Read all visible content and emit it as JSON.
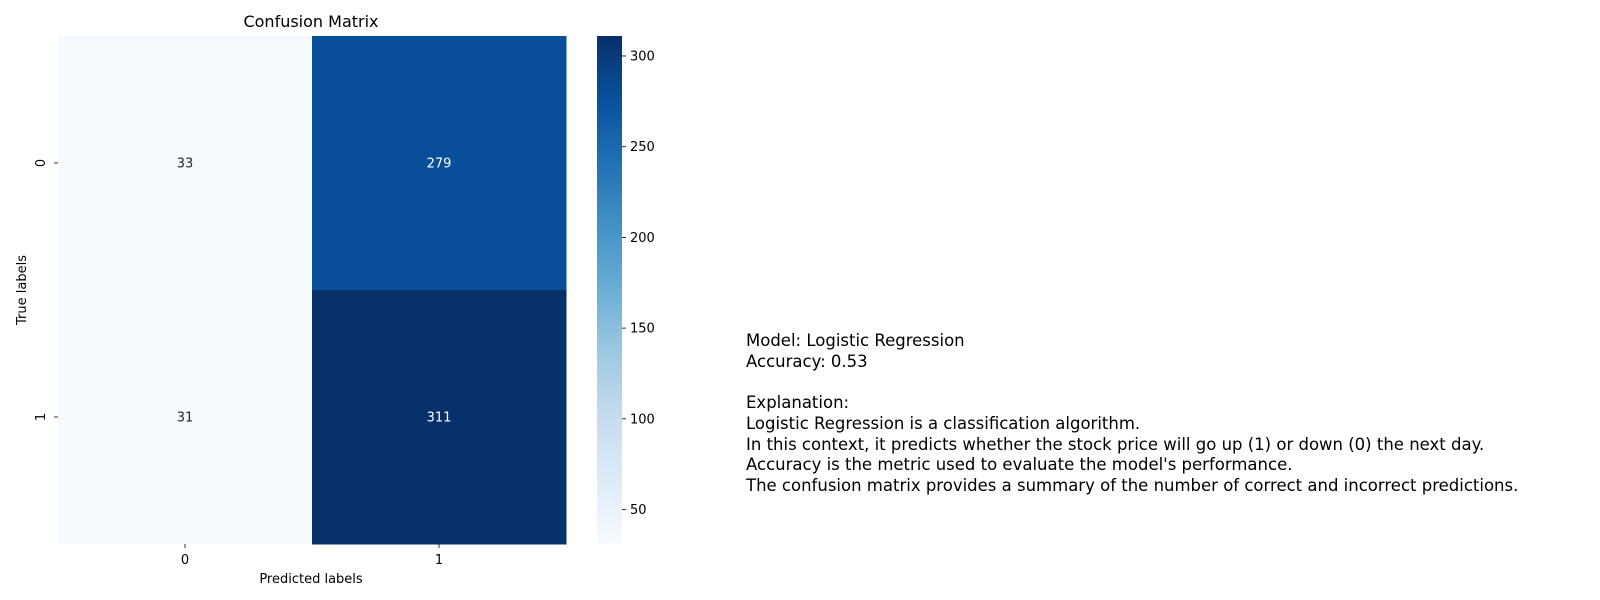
{
  "chart_data": {
    "type": "heatmap",
    "title": "Confusion Matrix",
    "xlabel": "Predicted labels",
    "ylabel": "True labels",
    "x_categories": [
      "0",
      "1"
    ],
    "y_categories": [
      "0",
      "1"
    ],
    "matrix": [
      [
        33,
        279
      ],
      [
        31,
        311
      ]
    ],
    "colormap": "Blues",
    "colorbar": {
      "range": [
        31,
        311
      ],
      "ticks": [
        "50",
        "100",
        "150",
        "200",
        "250",
        "300"
      ]
    }
  },
  "summary": {
    "model_line": "Model: Logistic Regression",
    "accuracy_line": "Accuracy: 0.53",
    "explanation_heading": "Explanation:",
    "lines": [
      "Logistic Regression is a classification algorithm.",
      "In this context, it predicts whether the stock price will go up (1) or down (0) the next day.",
      "Accuracy is the metric used to evaluate the model's performance.",
      "The confusion matrix provides a summary of the number of correct and incorrect predictions."
    ]
  }
}
